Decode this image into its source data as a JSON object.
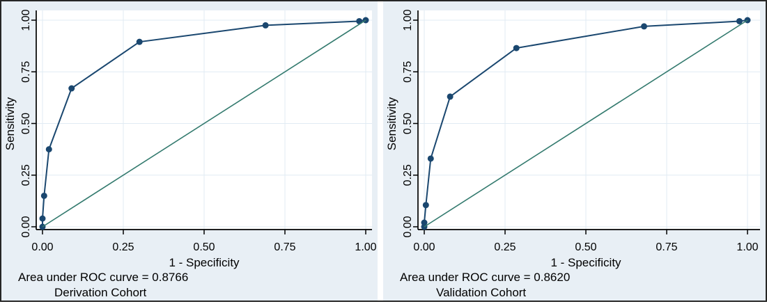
{
  "style": {
    "panel_bg": "#e8eff5",
    "plot_bg": "#ffffff",
    "grid_color": "#e0ebf3",
    "axis_color": "#000000",
    "text_color": "#000000",
    "frame_border": "#262626",
    "roc_color": "#1a476f",
    "reference_color": "#337a6e"
  },
  "chart_data": [
    {
      "type": "line",
      "title": "Derivation Cohort",
      "subtitle": "Area under ROC curve = 0.8766",
      "auc": 0.8766,
      "xlabel": "1 - Specificity",
      "ylabel": "Sensitivity",
      "xlim": [
        0,
        1
      ],
      "ylim": [
        0,
        1
      ],
      "grid": true,
      "legend_position": "none",
      "x_ticks": [
        0,
        0.25,
        0.5,
        0.75,
        1
      ],
      "y_ticks": [
        0,
        0.25,
        0.5,
        0.75,
        1
      ],
      "x_tick_labels": [
        "0.00",
        "0.25",
        "0.50",
        "0.75",
        "1.00"
      ],
      "y_tick_labels": [
        "0.00",
        "0.25",
        "0.50",
        "0.75",
        "1.00"
      ],
      "series": [
        {
          "name": "ROC curve",
          "color": "#1a476f",
          "marker": true,
          "line_width": 2,
          "points": [
            [
              0,
              0
            ],
            [
              0,
              0.04
            ],
            [
              0.005,
              0.15
            ],
            [
              0.02,
              0.375
            ],
            [
              0.09,
              0.67
            ],
            [
              0.3,
              0.895
            ],
            [
              0.69,
              0.975
            ],
            [
              0.98,
              0.995
            ],
            [
              1,
              1
            ]
          ]
        },
        {
          "name": "Reference diagonal",
          "color": "#337a6e",
          "marker": false,
          "line_width": 1.6,
          "points": [
            [
              0,
              0
            ],
            [
              1,
              1
            ]
          ]
        }
      ]
    },
    {
      "type": "line",
      "title": "Validation Cohort",
      "subtitle": "Area under ROC curve = 0.8620",
      "auc": 0.862,
      "xlabel": "1 - Specificity",
      "ylabel": "Sensitivity",
      "xlim": [
        0,
        1
      ],
      "ylim": [
        0,
        1
      ],
      "grid": true,
      "legend_position": "none",
      "x_ticks": [
        0,
        0.25,
        0.5,
        0.75,
        1
      ],
      "y_ticks": [
        0,
        0.25,
        0.5,
        0.75,
        1
      ],
      "x_tick_labels": [
        "0.00",
        "0.25",
        "0.50",
        "0.75",
        "1.00"
      ],
      "y_tick_labels": [
        "0.00",
        "0.25",
        "0.50",
        "0.75",
        "1.00"
      ],
      "series": [
        {
          "name": "ROC curve",
          "color": "#1a476f",
          "marker": true,
          "line_width": 2,
          "points": [
            [
              0,
              0
            ],
            [
              0,
              0.02
            ],
            [
              0.005,
              0.105
            ],
            [
              0.02,
              0.33
            ],
            [
              0.08,
              0.63
            ],
            [
              0.285,
              0.865
            ],
            [
              0.68,
              0.97
            ],
            [
              0.975,
              0.995
            ],
            [
              1,
              1
            ]
          ]
        },
        {
          "name": "Reference diagonal",
          "color": "#337a6e",
          "marker": false,
          "line_width": 1.6,
          "points": [
            [
              0,
              0
            ],
            [
              1,
              1
            ]
          ]
        }
      ]
    }
  ]
}
